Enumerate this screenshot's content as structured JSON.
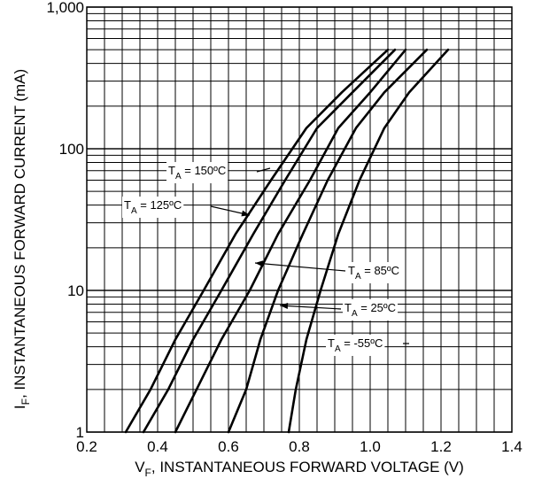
{
  "chart_data": {
    "type": "line",
    "xlabel": {
      "main": "V",
      "sub": "F",
      "rest": ", INSTANTANEOUS FORWARD VOLTAGE (V)"
    },
    "ylabel": {
      "main": "I",
      "sub": "F",
      "rest": ", INSTANTANEOUS FORWARD CURRENT (mA)"
    },
    "xlim": [
      0.2,
      1.4
    ],
    "ylim": [
      1,
      1000
    ],
    "yscale": "log",
    "grid": true,
    "xticks": [
      {
        "value": 0.2,
        "label": "0.2"
      },
      {
        "value": 0.4,
        "label": "0.4"
      },
      {
        "value": 0.6,
        "label": "0.6"
      },
      {
        "value": 0.8,
        "label": "0.8"
      },
      {
        "value": 1.0,
        "label": "1.0"
      },
      {
        "value": 1.2,
        "label": "1.2"
      },
      {
        "value": 1.4,
        "label": "1.4"
      }
    ],
    "yticks": [
      {
        "value": 1,
        "label": "1"
      },
      {
        "value": 10,
        "label": "10"
      },
      {
        "value": 100,
        "label": "100"
      },
      {
        "value": 1000,
        "label": "1,000"
      }
    ],
    "series": [
      {
        "name": "T_A = 150ºC",
        "x": [
          0.31,
          0.38,
          0.45,
          0.53,
          0.62,
          0.72,
          0.82,
          0.92,
          1.05
        ],
        "y": [
          1,
          2,
          4.5,
          10,
          25,
          60,
          140,
          250,
          500
        ]
      },
      {
        "name": "T_A = 125ºC",
        "x": [
          0.36,
          0.43,
          0.5,
          0.58,
          0.67,
          0.76,
          0.85,
          0.95,
          1.07
        ],
        "y": [
          1,
          2,
          4.5,
          10,
          25,
          60,
          140,
          250,
          500
        ]
      },
      {
        "name": "T_A = 85ºC",
        "x": [
          0.45,
          0.51,
          0.58,
          0.66,
          0.74,
          0.83,
          0.91,
          1.0,
          1.1
        ],
        "y": [
          1,
          2,
          4.5,
          10,
          25,
          60,
          140,
          250,
          500
        ]
      },
      {
        "name": "T_A = 25ºC",
        "x": [
          0.6,
          0.65,
          0.69,
          0.74,
          0.81,
          0.88,
          0.96,
          1.04,
          1.16
        ],
        "y": [
          1,
          2,
          4.5,
          10,
          25,
          60,
          140,
          250,
          500
        ]
      },
      {
        "name": "T_A = -55ºC",
        "x": [
          0.77,
          0.79,
          0.82,
          0.86,
          0.91,
          0.97,
          1.04,
          1.11,
          1.22
        ],
        "y": [
          1,
          2,
          4.5,
          10,
          25,
          60,
          140,
          250,
          500
        ]
      }
    ],
    "annotations": [
      {
        "text": "T",
        "sub": "A",
        "rest": " = 150ºC",
        "series": 0
      },
      {
        "text": "T",
        "sub": "A",
        "rest": " = 125ºC",
        "series": 1
      },
      {
        "text": "T",
        "sub": "A",
        "rest": " = 85ºC",
        "series": 2
      },
      {
        "text": "T",
        "sub": "A",
        "rest": " = 25ºC",
        "series": 3
      },
      {
        "text": "T",
        "sub": "A",
        "rest": " = -55ºC",
        "series": 4
      }
    ]
  }
}
